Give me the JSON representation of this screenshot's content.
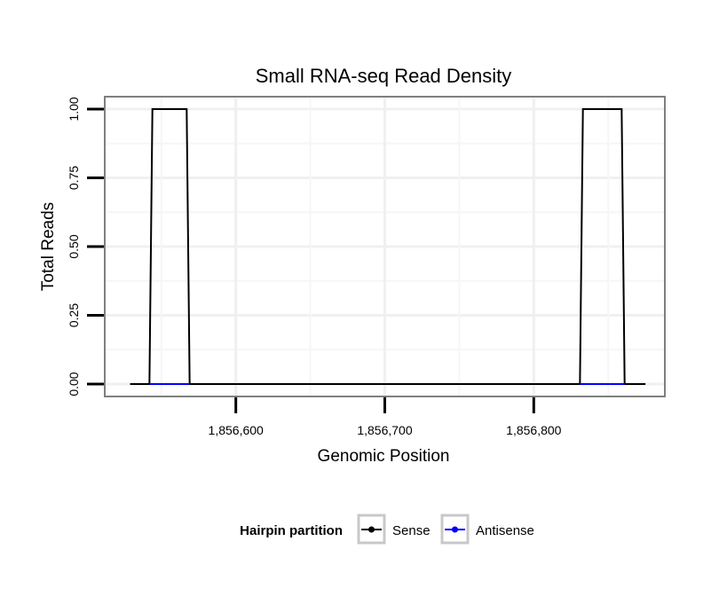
{
  "chart_data": {
    "type": "line",
    "title": "Small RNA-seq Read Density",
    "xlabel": "Genomic Position",
    "ylabel": "Total Reads",
    "xlim": [
      1856512,
      1856888
    ],
    "ylim": [
      -0.045,
      1.045
    ],
    "x_ticks": [
      1856600,
      1856700,
      1856800
    ],
    "x_tick_labels": [
      "1,856,600",
      "1,856,700",
      "1,856,800"
    ],
    "y_ticks": [
      0,
      0.25,
      0.5,
      0.75,
      1.0
    ],
    "y_tick_labels": [
      "0.00",
      "0.25",
      "0.50",
      "0.75",
      "1.00"
    ],
    "grid": true,
    "legend": {
      "title": "Hairpin partition",
      "placement": "bottom"
    },
    "series": [
      {
        "name": "Sense",
        "color": "#000000",
        "x": [
          1856529,
          1856542,
          1856544,
          1856567,
          1856569,
          1856831,
          1856833,
          1856859,
          1856861,
          1856875
        ],
        "values": [
          0,
          0,
          1,
          1,
          0,
          0,
          1,
          1,
          0,
          0
        ]
      },
      {
        "name": "Antisense",
        "color": "#0000ff",
        "x": [
          1856542,
          1856569,
          1856831,
          1856861
        ],
        "values": [
          0,
          0,
          0,
          0
        ],
        "segments": [
          [
            0,
            1
          ],
          [
            2,
            3
          ]
        ]
      }
    ]
  }
}
